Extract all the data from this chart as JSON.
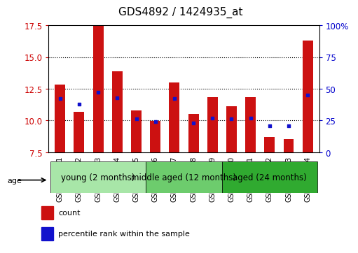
{
  "title": "GDS4892 / 1424935_at",
  "samples": [
    "GSM1230351",
    "GSM1230352",
    "GSM1230353",
    "GSM1230354",
    "GSM1230355",
    "GSM1230356",
    "GSM1230357",
    "GSM1230358",
    "GSM1230359",
    "GSM1230360",
    "GSM1230361",
    "GSM1230362",
    "GSM1230363",
    "GSM1230364"
  ],
  "counts": [
    12.8,
    10.7,
    17.5,
    13.9,
    10.8,
    9.95,
    13.0,
    10.5,
    11.85,
    11.1,
    11.85,
    8.7,
    8.55,
    16.3
  ],
  "percentiles": [
    42,
    38,
    47,
    43,
    26,
    24,
    42,
    23,
    27,
    26,
    27,
    21,
    21,
    45
  ],
  "ymin": 7.5,
  "ymax": 17.5,
  "yright_min": 0,
  "yright_max": 100,
  "yticks_left": [
    7.5,
    10.0,
    12.5,
    15.0,
    17.5
  ],
  "yticks_right": [
    0,
    25,
    50,
    75,
    100
  ],
  "ytick_labels_right": [
    "0",
    "25",
    "50",
    "75",
    "100%"
  ],
  "groups": [
    {
      "label": "young (2 months)",
      "start": 0,
      "end": 5,
      "color": "#a8e6a8"
    },
    {
      "label": "middle aged (12 months)",
      "start": 5,
      "end": 9,
      "color": "#6dcc6d"
    },
    {
      "label": "aged (24 months)",
      "start": 9,
      "end": 14,
      "color": "#30aa30"
    }
  ],
  "bar_color": "#CC1111",
  "dot_color": "#1111CC",
  "bar_width": 0.55,
  "tick_label_color_left": "#CC0000",
  "tick_label_color_right": "#0000CC",
  "title_fontsize": 11,
  "tick_fontsize": 8.5,
  "sample_label_fontsize": 7,
  "legend_fontsize": 8,
  "group_label_fontsize": 8.5
}
